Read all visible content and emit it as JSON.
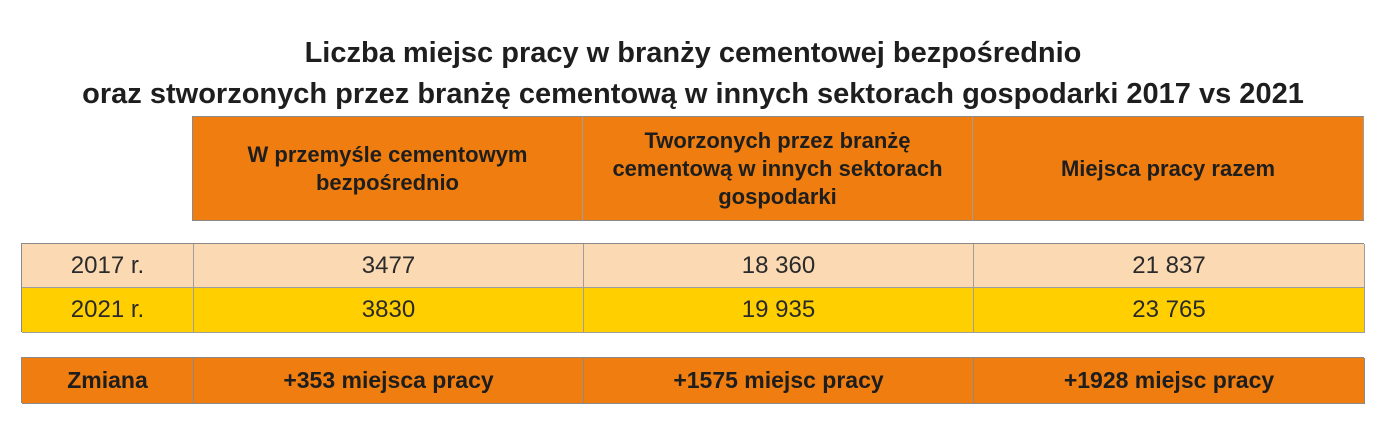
{
  "title": {
    "line1": "Liczba miejsc pracy w branży cementowej bezpośrednio",
    "line2": "oraz stworzonych przez branżę cementową w innych sektorach gospodarki 2017 vs 2021"
  },
  "colors": {
    "header_fill": "#ef7d0f",
    "row_2017_fill": "#fbd9b3",
    "row_2021_fill": "#ffcf00",
    "change_fill": "#ef7d0f"
  },
  "chart_data": {
    "type": "table",
    "title": "Liczba miejsc pracy w branży cementowej bezpośrednio oraz stworzonych przez branżę cementową w innych sektorach gospodarki 2017 vs 2021",
    "columns": [
      "W przemyśle cementowym bezpośrednio",
      "Tworzonych przez branżę cementową w innych sektorach gospodarki",
      "Miejsca pracy razem"
    ],
    "rows": [
      {
        "label": "2017 r.",
        "values": [
          "3477",
          "18 360",
          "21 837"
        ]
      },
      {
        "label": "2021 r.",
        "values": [
          "3830",
          "19 935",
          "23 765"
        ]
      }
    ],
    "change": {
      "label": "Zmiana",
      "values": [
        "+353 miejsca pracy",
        "+1575 miejsc pracy",
        "+1928 miejsc pracy"
      ]
    }
  }
}
